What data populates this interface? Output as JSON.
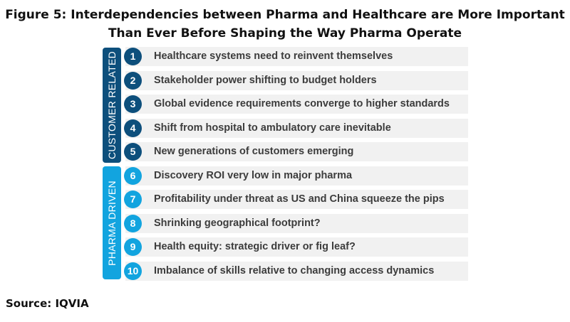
{
  "title_line1": "Figure 5: Interdependencies between Pharma and Healthcare are More Important",
  "title_line2": "Than Ever Before Shaping the Way Pharma Operate",
  "groups": [
    {
      "label": "CUSTOMER RELATED",
      "color": "#0d4f7c",
      "items": [
        {
          "num": "1",
          "text": "Healthcare systems need to reinvent themselves"
        },
        {
          "num": "2",
          "text": "Stakeholder power shifting to budget holders"
        },
        {
          "num": "3",
          "text": "Global evidence requirements converge to higher standards"
        },
        {
          "num": "4",
          "text": "Shift from hospital to ambulatory care inevitable"
        },
        {
          "num": "5",
          "text": "New generations of customers emerging"
        }
      ]
    },
    {
      "label": "PHARMA DRIVEN",
      "color": "#12a4df",
      "items": [
        {
          "num": "6",
          "text": "Discovery ROI very low in major pharma"
        },
        {
          "num": "7",
          "text": "Profitability under threat as US and China squeeze the pips"
        },
        {
          "num": "8",
          "text": "Shrinking geographical footprint?"
        },
        {
          "num": "9",
          "text": "Health equity: strategic driver or fig leaf?"
        },
        {
          "num": "10",
          "text": "Imbalance of skills relative to changing access dynamics"
        }
      ]
    }
  ],
  "source": "Source: IQVIA"
}
